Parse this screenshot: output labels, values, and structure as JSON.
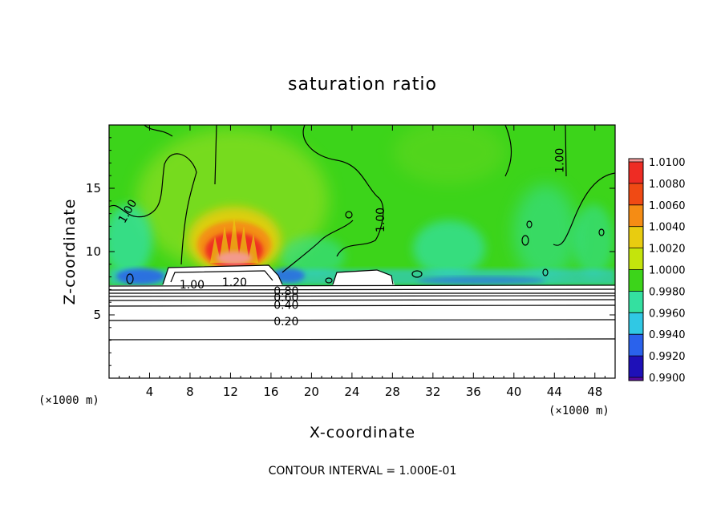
{
  "chart_data": {
    "type": "heatmap",
    "title": "saturation ratio",
    "xlabel": "X-coordinate",
    "ylabel": "Z-coordinate",
    "x_unit": "(×1000 m)",
    "y_unit": "(×1000 m)",
    "xlim": [
      0,
      50
    ],
    "ylim": [
      0,
      20
    ],
    "x_ticks": [
      4,
      8,
      12,
      16,
      20,
      24,
      28,
      32,
      36,
      40,
      44,
      48
    ],
    "y_ticks": [
      5,
      10,
      15
    ],
    "colorbar": {
      "labels": [
        "1.0100",
        "1.0080",
        "1.0060",
        "1.0040",
        "1.0020",
        "1.0000",
        "0.9980",
        "0.9960",
        "0.9940",
        "0.9920",
        "0.9900"
      ],
      "colors": [
        "#f49a9a",
        "#ee2c24",
        "#f04a14",
        "#f58c14",
        "#e8cc10",
        "#c4e40c",
        "#3cd41a",
        "#34e0a0",
        "#30c8e4",
        "#2a62ec",
        "#1e10b8",
        "#5a0aa0"
      ]
    },
    "contour_labels": [
      {
        "text": "1.00",
        "x": 1.8,
        "z": 13.2,
        "rotate": -60
      },
      {
        "text": "1.00",
        "x": 26.8,
        "z": 12.5,
        "rotate": -90
      },
      {
        "text": "1.00",
        "x": 44.5,
        "z": 17.2,
        "rotate": -90
      },
      {
        "text": "1.00",
        "x": 8.2,
        "z": 7.4,
        "rotate": 0
      },
      {
        "text": "1.20",
        "x": 12.4,
        "z": 7.6,
        "rotate": 0
      },
      {
        "text": "0.80",
        "x": 17.5,
        "z": 6.9,
        "rotate": 0
      },
      {
        "text": "0.60",
        "x": 17.5,
        "z": 6.4,
        "rotate": 0
      },
      {
        "text": "0.40",
        "x": 17.5,
        "z": 5.8,
        "rotate": 0
      },
      {
        "text": "0.20",
        "x": 17.5,
        "z": 4.5,
        "rotate": 0
      }
    ],
    "colors": {
      "background_field": "#3cd41a",
      "clear_air": "#ffffff"
    }
  },
  "footer": "CONTOUR INTERVAL = 1.000E-01"
}
